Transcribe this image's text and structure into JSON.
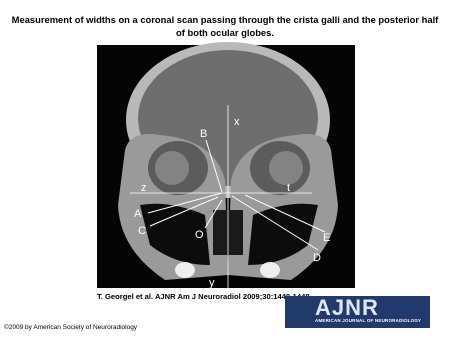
{
  "header": {
    "title": "Measurement of widths on a coronal scan passing through the crista galli and the posterior half of both ocular globes."
  },
  "figure": {
    "labels": [
      "x",
      "B",
      "z",
      "t",
      "A",
      "C",
      "O",
      "E",
      "D",
      "y"
    ]
  },
  "citation": "T. Georgel et al. AJNR Am J Neuroradiol 2009;30:1440-1448",
  "logo": {
    "title": "AJNR",
    "subtitle": "AMERICAN JOURNAL OF NEURORADIOLOGY"
  },
  "copyright": "©2009 by American Society of Neuroradiology"
}
